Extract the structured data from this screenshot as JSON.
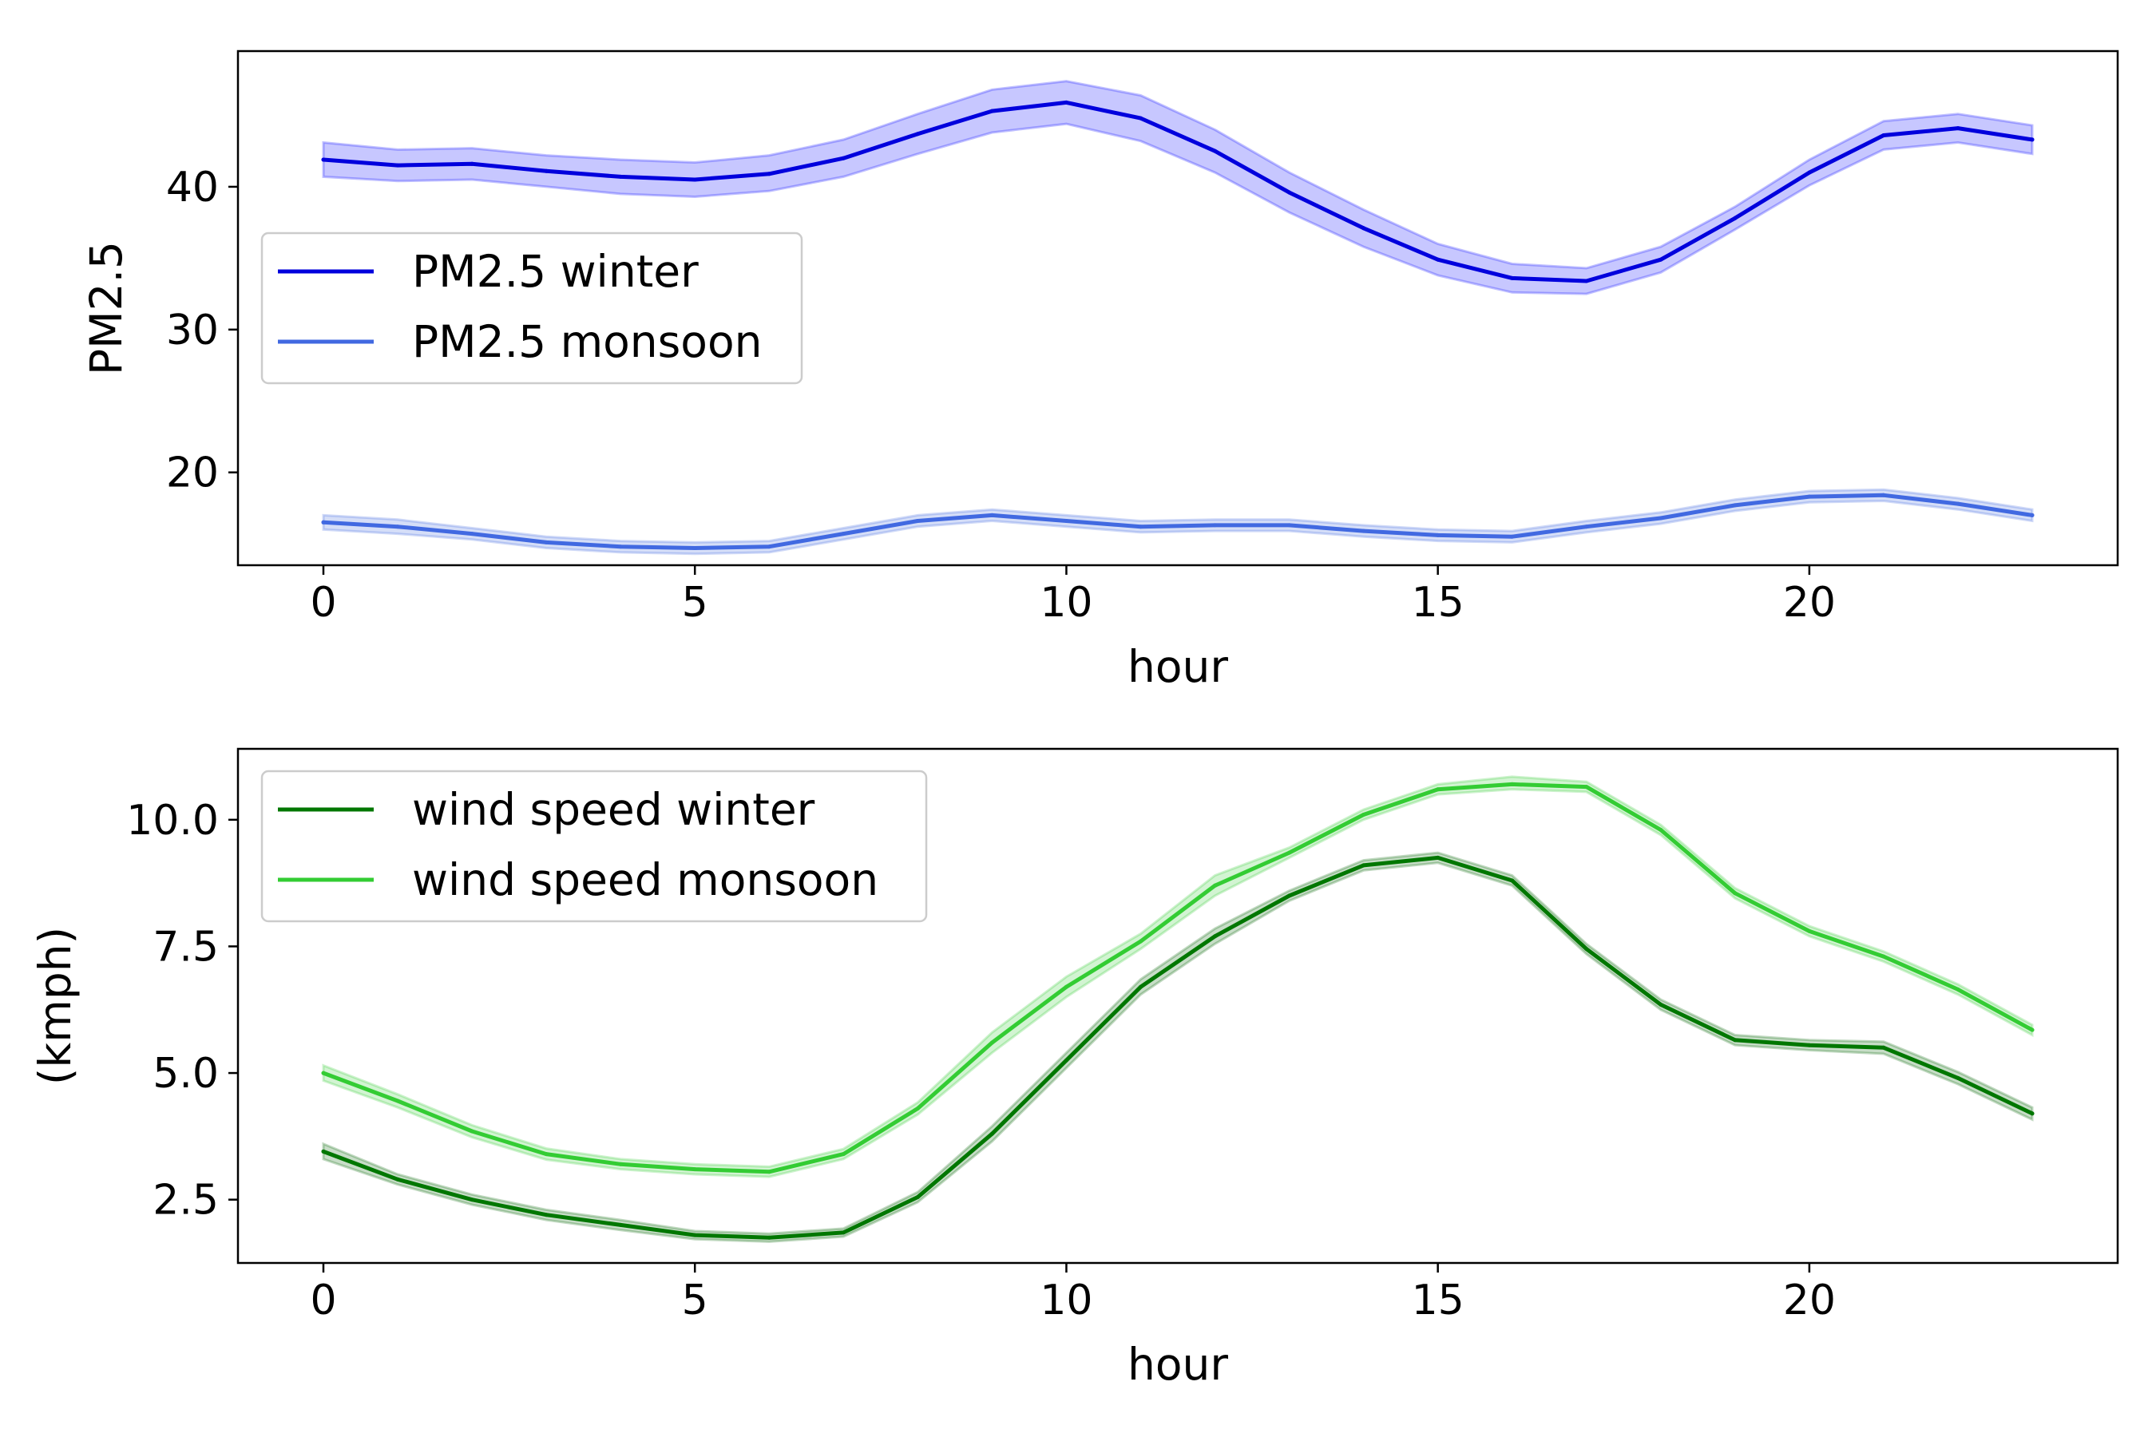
{
  "chart_data": [
    {
      "type": "line",
      "xlabel": "hour",
      "ylabel": "PM2.5",
      "xlim": [
        -1.15,
        24.15
      ],
      "ylim": [
        13.5,
        49.5
      ],
      "xticks": [
        0,
        5,
        10,
        15,
        20
      ],
      "xtick_labels": [
        "0",
        "5",
        "10",
        "15",
        "20"
      ],
      "yticks": [
        20,
        30,
        40
      ],
      "ytick_labels": [
        "20",
        "30",
        "40"
      ],
      "grid": false,
      "legend_position": "center-left",
      "x": [
        0,
        1,
        2,
        3,
        4,
        5,
        6,
        7,
        8,
        9,
        10,
        11,
        12,
        13,
        14,
        15,
        16,
        17,
        18,
        19,
        20,
        21,
        22,
        23
      ],
      "series": [
        {
          "name": "PM2.5 winter",
          "color": "#0000dd",
          "band_color": "#0000ff",
          "values": [
            41.9,
            41.5,
            41.6,
            41.1,
            40.7,
            40.5,
            40.9,
            42.0,
            43.7,
            45.3,
            45.9,
            44.8,
            42.5,
            39.6,
            37.1,
            34.9,
            33.6,
            33.4,
            34.9,
            37.8,
            41.0,
            43.6,
            44.1,
            43.3
          ],
          "lower": [
            40.7,
            40.4,
            40.5,
            40.0,
            39.5,
            39.3,
            39.7,
            40.7,
            42.3,
            43.8,
            44.4,
            43.2,
            41.0,
            38.2,
            35.8,
            33.8,
            32.6,
            32.5,
            34.0,
            37.0,
            40.1,
            42.6,
            43.1,
            42.3
          ],
          "upper": [
            43.1,
            42.6,
            42.7,
            42.2,
            41.9,
            41.7,
            42.2,
            43.3,
            45.1,
            46.8,
            47.4,
            46.4,
            44.0,
            41.0,
            38.4,
            36.0,
            34.6,
            34.3,
            35.8,
            38.6,
            41.9,
            44.6,
            45.1,
            44.3
          ]
        },
        {
          "name": "PM2.5 monsoon",
          "color": "#4169e1",
          "band_color": "#4169e1",
          "values": [
            16.5,
            16.2,
            15.7,
            15.1,
            14.8,
            14.7,
            14.8,
            15.7,
            16.6,
            17.0,
            16.6,
            16.2,
            16.3,
            16.3,
            15.9,
            15.6,
            15.5,
            16.2,
            16.8,
            17.7,
            18.3,
            18.4,
            17.8,
            17.0
          ],
          "lower": [
            16.0,
            15.7,
            15.3,
            14.7,
            14.4,
            14.3,
            14.4,
            15.3,
            16.2,
            16.6,
            16.2,
            15.8,
            15.9,
            15.9,
            15.5,
            15.2,
            15.1,
            15.8,
            16.4,
            17.3,
            17.9,
            18.0,
            17.4,
            16.6
          ],
          "upper": [
            17.0,
            16.7,
            16.1,
            15.5,
            15.2,
            15.1,
            15.2,
            16.1,
            17.0,
            17.4,
            17.0,
            16.6,
            16.7,
            16.7,
            16.3,
            16.0,
            15.9,
            16.6,
            17.2,
            18.1,
            18.7,
            18.8,
            18.2,
            17.4
          ]
        }
      ]
    },
    {
      "type": "line",
      "xlabel": "hour",
      "ylabel": "(kmph)",
      "xlim": [
        -1.15,
        24.15
      ],
      "ylim": [
        1.25,
        11.4
      ],
      "xticks": [
        0,
        5,
        10,
        15,
        20
      ],
      "xtick_labels": [
        "0",
        "5",
        "10",
        "15",
        "20"
      ],
      "yticks": [
        2.5,
        5.0,
        7.5,
        10.0
      ],
      "ytick_labels": [
        "2.5",
        "5.0",
        "7.5",
        "10.0"
      ],
      "grid": false,
      "legend_position": "upper-left",
      "x": [
        0,
        1,
        2,
        3,
        4,
        5,
        6,
        7,
        8,
        9,
        10,
        11,
        12,
        13,
        14,
        15,
        16,
        17,
        18,
        19,
        20,
        21,
        22,
        23
      ],
      "series": [
        {
          "name": "wind speed winter",
          "color": "#007700",
          "band_color": "#006400",
          "values": [
            3.45,
            2.9,
            2.5,
            2.2,
            2.0,
            1.8,
            1.75,
            1.85,
            2.55,
            3.8,
            5.25,
            6.7,
            7.7,
            8.5,
            9.1,
            9.25,
            8.8,
            7.45,
            6.35,
            5.65,
            5.55,
            5.5,
            4.9,
            4.2
          ],
          "lower": [
            3.3,
            2.8,
            2.4,
            2.1,
            1.9,
            1.72,
            1.67,
            1.77,
            2.45,
            3.65,
            5.1,
            6.55,
            7.55,
            8.4,
            9.0,
            9.15,
            8.7,
            7.35,
            6.25,
            5.55,
            5.45,
            5.38,
            4.78,
            4.08
          ],
          "upper": [
            3.6,
            3.0,
            2.6,
            2.3,
            2.1,
            1.88,
            1.83,
            1.93,
            2.65,
            3.95,
            5.4,
            6.85,
            7.85,
            8.6,
            9.2,
            9.35,
            8.9,
            7.55,
            6.45,
            5.75,
            5.65,
            5.62,
            5.02,
            4.32
          ]
        },
        {
          "name": "wind speed monsoon",
          "color": "#33cc33",
          "band_color": "#32cd32",
          "values": [
            5.0,
            4.45,
            3.85,
            3.4,
            3.2,
            3.1,
            3.05,
            3.4,
            4.3,
            5.6,
            6.7,
            7.6,
            8.7,
            9.35,
            10.1,
            10.6,
            10.7,
            10.65,
            9.8,
            8.55,
            7.8,
            7.3,
            6.65,
            5.85
          ],
          "lower": [
            4.85,
            4.32,
            3.73,
            3.29,
            3.1,
            3.0,
            2.95,
            3.3,
            4.18,
            5.4,
            6.5,
            7.45,
            8.5,
            9.25,
            10.0,
            10.5,
            10.6,
            10.55,
            9.7,
            8.45,
            7.7,
            7.2,
            6.55,
            5.75
          ],
          "upper": [
            5.15,
            4.58,
            3.97,
            3.51,
            3.3,
            3.2,
            3.15,
            3.5,
            4.42,
            5.8,
            6.9,
            7.75,
            8.9,
            9.45,
            10.2,
            10.7,
            10.85,
            10.75,
            9.9,
            8.65,
            7.9,
            7.4,
            6.75,
            5.95
          ]
        }
      ]
    }
  ]
}
